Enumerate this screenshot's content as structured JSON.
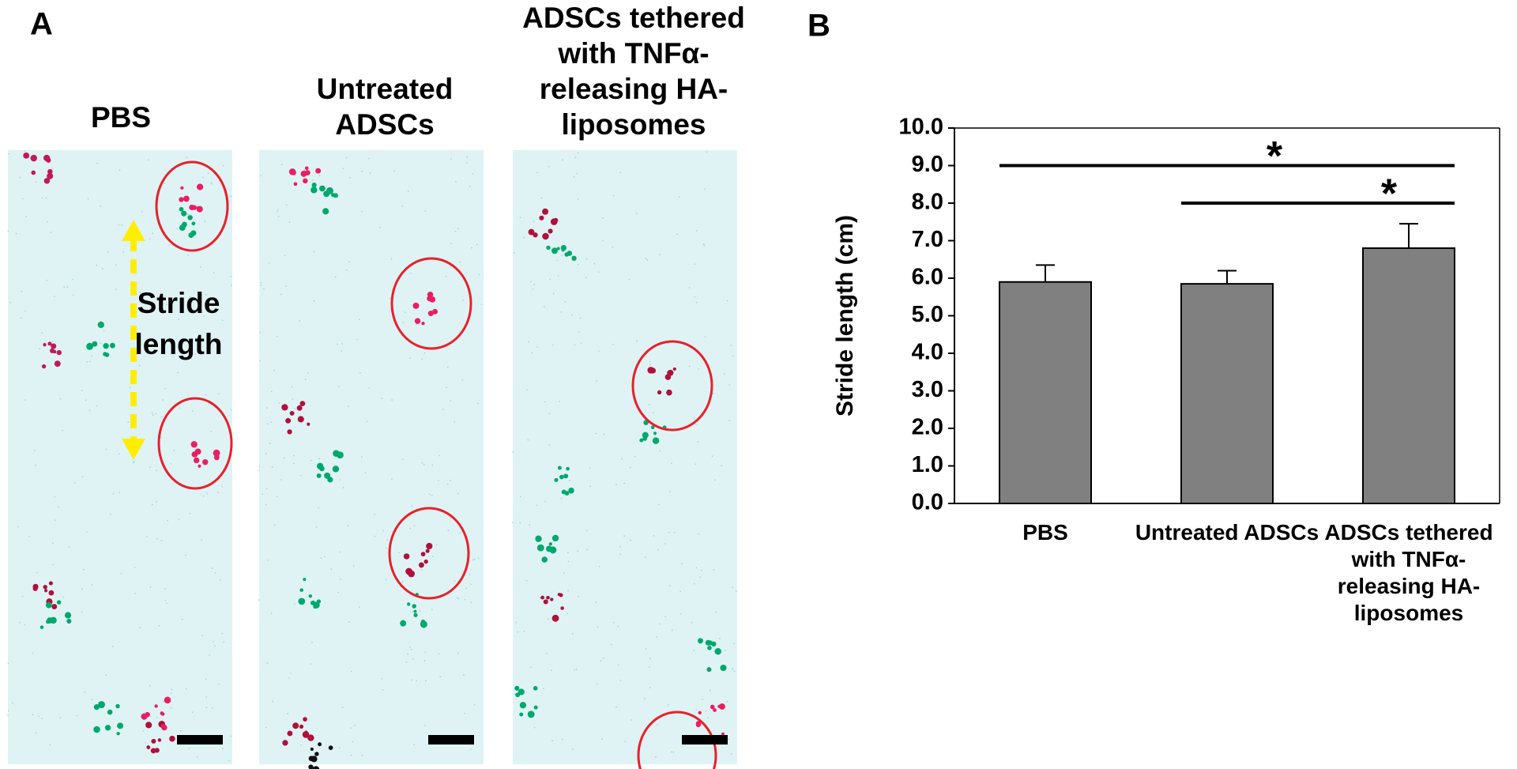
{
  "panel_a": {
    "label": "A",
    "images": [
      {
        "title": [
          "PBS"
        ]
      },
      {
        "title": [
          "Untreated",
          "ADSCs"
        ]
      },
      {
        "title": [
          "ADSCs tethered",
          "with TNFα-",
          "releasing HA-",
          "liposomes"
        ]
      }
    ],
    "annotation": [
      "Stride",
      "length"
    ]
  },
  "chart_data": {
    "type": "bar",
    "panel_label": "B",
    "y_label": "Stride length (cm)",
    "categories": [
      "PBS",
      "Untreated ADSCs",
      "ADSCs tethered with TNFα-releasing HA-liposomes"
    ],
    "values": [
      5.9,
      5.85,
      6.8
    ],
    "errors": [
      0.45,
      0.35,
      0.65
    ],
    "color": "#808080",
    "ylim": [
      0,
      10
    ],
    "yticks": [
      {
        "value": 0,
        "label": "0.0"
      },
      {
        "value": 1,
        "label": "1.0"
      },
      {
        "value": 2,
        "label": "2.0"
      },
      {
        "value": 3,
        "label": "3.0"
      },
      {
        "value": 4,
        "label": "4.0"
      },
      {
        "value": 5,
        "label": "5.0"
      },
      {
        "value": 6,
        "label": "6.0"
      },
      {
        "value": 7,
        "label": "7.0"
      },
      {
        "value": 8,
        "label": "8.0"
      },
      {
        "value": 9,
        "label": "9.0"
      },
      {
        "value": 10,
        "label": "10.0"
      }
    ],
    "significance": [
      {
        "pair": [
          0,
          2
        ],
        "y": 9,
        "label": "*"
      },
      {
        "pair": [
          1,
          2
        ],
        "y": 8,
        "label": "*"
      }
    ]
  }
}
